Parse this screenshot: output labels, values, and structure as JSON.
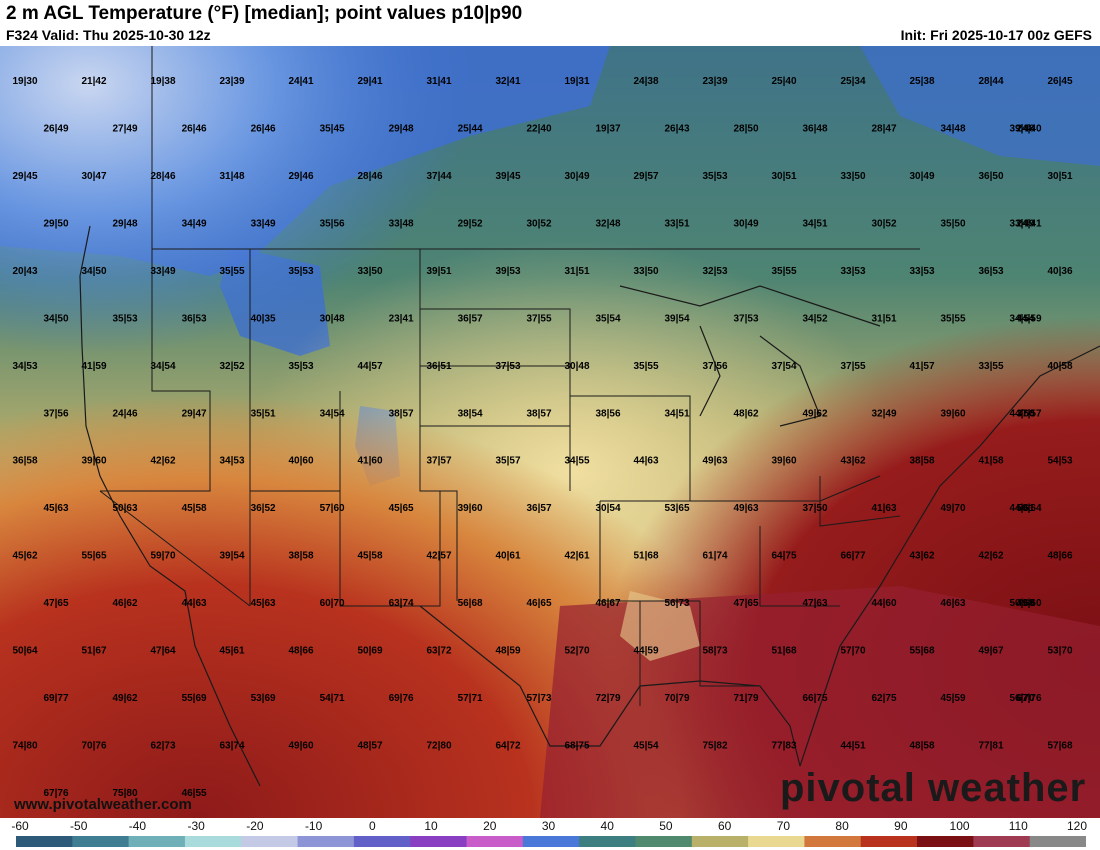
{
  "header": {
    "title": "2 m AGL Temperature (°F) [median]; point values p10|p90",
    "valid": "F324 Valid: Thu 2025-10-30 12z",
    "init": "Init: Fri 2025-10-17 00z GEFS"
  },
  "footer": {
    "site": "www.pivotalweather.com",
    "watermark": "pivotal weather"
  },
  "colorbar": {
    "ticks": [
      "-60",
      "-50",
      "-40",
      "-30",
      "-20",
      "-10",
      "0",
      "10",
      "20",
      "30",
      "40",
      "50",
      "60",
      "70",
      "80",
      "90",
      "100",
      "110",
      "120"
    ],
    "colors": [
      "#2c5a78",
      "#3f7d92",
      "#6fb0b8",
      "#a9dbdc",
      "#c4c9e6",
      "#8e95d6",
      "#6060c8",
      "#8a3fc2",
      "#c85cc9",
      "#4a78d8",
      "#3d7f80",
      "#4f8a6e",
      "#b9b06a",
      "#e8d890",
      "#d2783c",
      "#b8321e",
      "#7a0f14",
      "#9e3a52",
      "#888888"
    ]
  },
  "point_values": [
    "19|30",
    "21|42",
    "19|38",
    "23|39",
    "24|41",
    "29|41",
    "31|41",
    "32|41",
    "19|31",
    "24|38",
    "23|39",
    "25|40",
    "25|34",
    "25|38",
    "28|44",
    "26|45",
    "26|49",
    "27|49",
    "26|46",
    "26|46",
    "35|45",
    "29|48",
    "25|44",
    "22|40",
    "19|37",
    "26|43",
    "28|50",
    "36|48",
    "28|47",
    "34|48",
    "39|48",
    "24|40",
    "29|45",
    "30|47",
    "28|46",
    "31|48",
    "29|46",
    "28|46",
    "37|44",
    "39|45",
    "30|49",
    "29|57",
    "35|53",
    "30|51",
    "33|50",
    "30|49",
    "36|50",
    "30|51",
    "29|50",
    "29|48",
    "34|49",
    "33|49",
    "35|56",
    "33|48",
    "29|52",
    "30|52",
    "32|48",
    "33|51",
    "30|49",
    "34|51",
    "30|52",
    "35|50",
    "33|49",
    "24|41",
    "20|43",
    "34|50",
    "33|49",
    "35|55",
    "35|53",
    "33|50",
    "39|51",
    "39|53",
    "31|51",
    "33|50",
    "32|53",
    "35|55",
    "33|53",
    "33|53",
    "36|53",
    "40|36",
    "34|50",
    "35|53",
    "36|53",
    "40|35",
    "30|48",
    "23|41",
    "36|57",
    "37|55",
    "35|54",
    "39|54",
    "37|53",
    "34|52",
    "31|51",
    "35|55",
    "34|54",
    "44|59",
    "34|53",
    "41|59",
    "34|54",
    "32|52",
    "35|53",
    "44|57",
    "36|51",
    "37|53",
    "30|48",
    "35|55",
    "37|56",
    "37|54",
    "37|55",
    "41|57",
    "33|55",
    "40|58",
    "37|56",
    "24|46",
    "29|47",
    "35|51",
    "34|54",
    "38|57",
    "38|54",
    "38|57",
    "38|56",
    "34|51",
    "48|62",
    "49|62",
    "32|49",
    "39|60",
    "44|60",
    "37|57",
    "36|58",
    "39|60",
    "42|62",
    "34|53",
    "40|60",
    "41|60",
    "37|57",
    "35|57",
    "34|55",
    "44|63",
    "49|63",
    "39|60",
    "43|62",
    "38|58",
    "41|58",
    "54|53",
    "45|63",
    "50|63",
    "45|58",
    "36|52",
    "57|60",
    "45|65",
    "39|60",
    "36|57",
    "30|54",
    "53|65",
    "49|63",
    "37|50",
    "41|63",
    "49|70",
    "44|61",
    "50|64",
    "45|62",
    "55|65",
    "59|70",
    "39|54",
    "38|58",
    "45|58",
    "42|57",
    "40|61",
    "42|61",
    "51|68",
    "61|74",
    "64|75",
    "66|77",
    "43|62",
    "42|62",
    "48|66",
    "47|65",
    "46|62",
    "44|63",
    "45|63",
    "60|70",
    "63|74",
    "56|68",
    "46|65",
    "46|67",
    "56|73",
    "47|65",
    "47|63",
    "44|60",
    "46|63",
    "50|68",
    "49|60",
    "50|64",
    "51|67",
    "47|64",
    "45|61",
    "48|66",
    "50|69",
    "63|72",
    "48|59",
    "52|70",
    "44|59",
    "58|73",
    "51|68",
    "57|70",
    "55|68",
    "49|67",
    "53|70",
    "69|77",
    "49|62",
    "55|69",
    "53|69",
    "54|71",
    "69|76",
    "57|71",
    "57|73",
    "72|79",
    "70|79",
    "71|79",
    "66|75",
    "62|75",
    "45|59",
    "56|70",
    "67|76",
    "74|80",
    "70|76",
    "62|73",
    "63|74",
    "49|60",
    "48|57",
    "72|80",
    "64|72",
    "68|75",
    "45|54",
    "75|82",
    "77|83",
    "44|51",
    "48|58",
    "77|81",
    "57|68",
    "67|76",
    "75|80",
    "46|55"
  ]
}
